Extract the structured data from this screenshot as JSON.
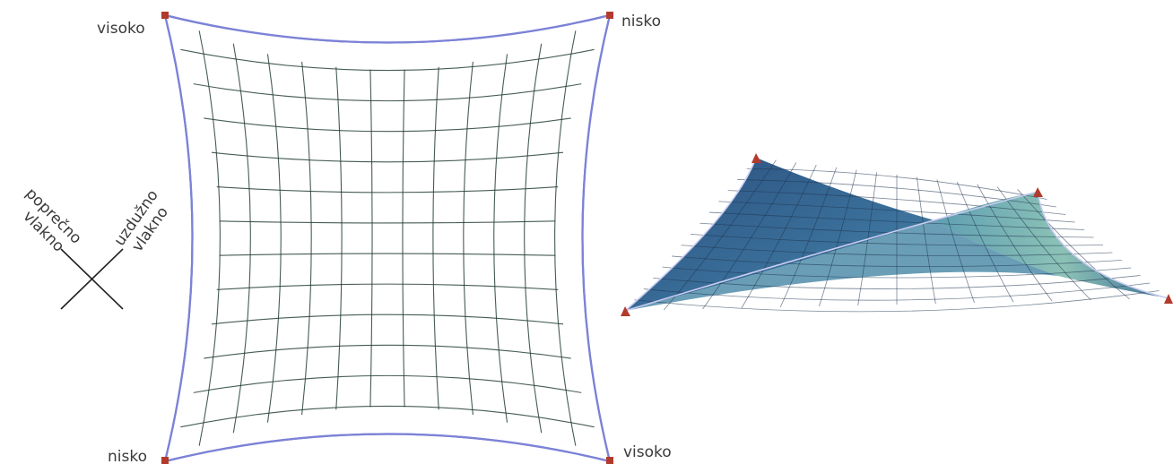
{
  "plan_view": {
    "corners": {
      "top_left": "visoko",
      "top_right": "nisko",
      "bottom_left": "nisko",
      "bottom_right": "visoko"
    },
    "fibers": {
      "transverse": [
        "poprečno",
        "vlakno"
      ],
      "longitudinal": [
        "uzdužno",
        "vlakno"
      ]
    }
  },
  "colors": {
    "membrane_light": "#8fd3a4",
    "membrane_mid": "#5fbf96",
    "membrane_dark": "#3f8f86",
    "edge": "#7c82d6",
    "anchor": "#b23a2c",
    "surface_3d_dark": "#2e5d8e",
    "surface_3d_light": "#8fc4b8"
  }
}
